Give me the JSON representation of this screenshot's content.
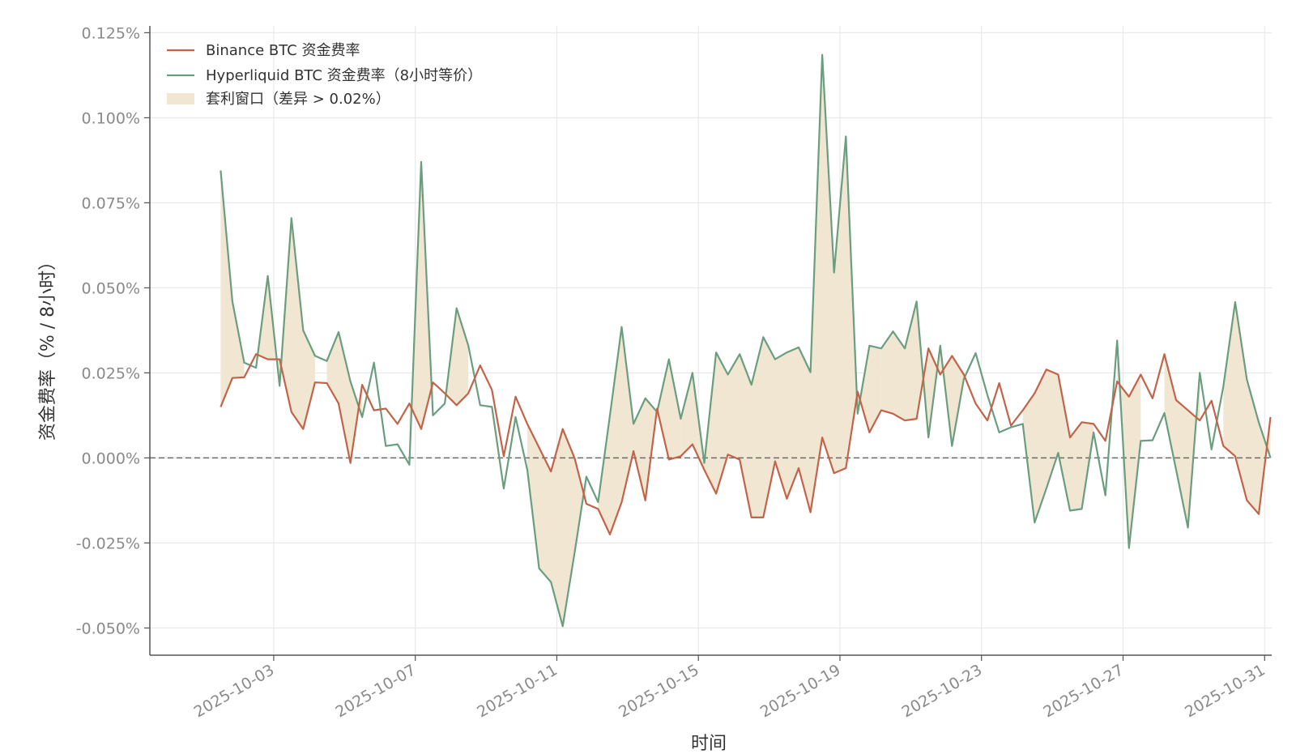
{
  "chart_data": {
    "type": "line",
    "xlabel": "时间",
    "ylabel": "资金费率（% / 8小时）",
    "x_ticks": [
      "2025-10-03",
      "2025-10-07",
      "2025-10-11",
      "2025-10-15",
      "2025-10-19",
      "2025-10-23",
      "2025-10-27",
      "2025-10-31"
    ],
    "y_ticks": [
      -0.05,
      -0.025,
      0.0,
      0.025,
      0.05,
      0.075,
      0.1,
      0.125
    ],
    "y_tick_labels": [
      "-0.050%",
      "-0.025%",
      "0.000%",
      "0.025%",
      "0.050%",
      "0.075%",
      "0.100%",
      "0.125%"
    ],
    "ylim": [
      -0.058,
      0.127
    ],
    "xlim_days": [
      -0.5,
      31.2
    ],
    "start_day": 1.5,
    "step_days": 0.333333,
    "grid": true,
    "legend_position": "top-left",
    "zero_line": true,
    "series": [
      {
        "name": "Binance BTC 资金费率",
        "color": "#c1644a",
        "values": [
          0.015,
          0.0235,
          0.0237,
          0.0305,
          0.029,
          0.029,
          0.0135,
          0.0085,
          0.0222,
          0.022,
          0.016,
          -0.0015,
          0.0215,
          0.014,
          0.0145,
          0.01,
          0.016,
          0.0085,
          0.0222,
          0.019,
          0.0155,
          0.019,
          0.0272,
          0.02,
          0.0005,
          0.018,
          0.01,
          0.003,
          -0.004,
          0.0085,
          0.0,
          -0.0135,
          -0.015,
          -0.0225,
          -0.013,
          0.002,
          -0.0125,
          0.0145,
          -0.0005,
          0.0005,
          0.004,
          -0.0035,
          -0.0105,
          0.001,
          -0.0005,
          -0.0175,
          -0.0175,
          -0.001,
          -0.012,
          -0.003,
          -0.016,
          0.006,
          -0.0045,
          -0.003,
          0.0195,
          0.0075,
          0.014,
          0.013,
          0.011,
          0.0115,
          0.0322,
          0.0245,
          0.03,
          0.0245,
          0.016,
          0.011,
          0.022,
          0.0095,
          0.014,
          0.019,
          0.026,
          0.0245,
          0.006,
          0.0105,
          0.01,
          0.005,
          0.0225,
          0.018,
          0.0245,
          0.0175,
          0.0305,
          0.017,
          0.014,
          0.011,
          0.0168,
          0.0035,
          0.0005,
          -0.0125,
          -0.0165,
          0.012
        ]
      },
      {
        "name": "Hyperliquid BTC 资金费率（8小时等价）",
        "color": "#6a9e7f",
        "values": [
          0.0845,
          0.046,
          0.028,
          0.0265,
          0.0535,
          0.0212,
          0.0705,
          0.0375,
          0.03,
          0.0285,
          0.037,
          0.0225,
          0.012,
          0.028,
          0.0035,
          0.004,
          -0.002,
          0.087,
          0.0125,
          0.016,
          0.044,
          0.033,
          0.0155,
          0.015,
          -0.009,
          0.012,
          -0.0035,
          -0.0325,
          -0.0365,
          -0.0495,
          -0.028,
          -0.0055,
          -0.013,
          0.0125,
          0.0385,
          0.01,
          0.0175,
          0.0135,
          0.029,
          0.0115,
          0.025,
          -0.0015,
          0.031,
          0.0245,
          0.0305,
          0.0215,
          0.0355,
          0.029,
          0.031,
          0.0325,
          0.0252,
          0.1185,
          0.0545,
          0.0945,
          0.013,
          0.033,
          0.0322,
          0.0372,
          0.0322,
          0.046,
          0.006,
          0.033,
          0.0035,
          0.0232,
          0.0308,
          0.0185,
          0.0075,
          0.009,
          0.01,
          -0.019,
          -0.009,
          0.0015,
          -0.0155,
          -0.015,
          0.0075,
          -0.011,
          0.0345,
          -0.0265,
          0.005,
          0.0052,
          0.0132,
          -0.0035,
          -0.0205,
          0.025,
          0.0025,
          0.021,
          0.0458,
          0.023,
          0.0105,
          0.0
        ]
      }
    ],
    "fill": {
      "name": "套利窗口（差异 > 0.02%）",
      "color": "#f0e6d2",
      "threshold": 0.02
    }
  }
}
